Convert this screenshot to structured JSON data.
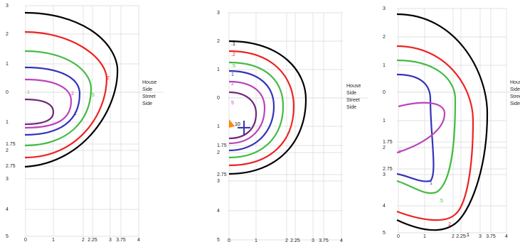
{
  "panels": [
    {
      "y_labels": [
        "3",
        "2",
        "1",
        "0",
        "1",
        "1.75",
        "2",
        "2.75",
        "3",
        "4",
        "5"
      ],
      "x_labels": [
        "0",
        "1",
        "2",
        "2.25",
        "3",
        "3.75",
        "4"
      ],
      "side_labels": [
        "House",
        "Side",
        "Street",
        "Side"
      ],
      "contour_labels": [
        "2",
        ".5",
        ".2",
        "1",
        "1"
      ]
    },
    {
      "y_labels": [
        "3",
        "2",
        "1",
        "0",
        "1",
        "1.75",
        "2",
        "2.75",
        "3",
        "4",
        "5"
      ],
      "x_labels": [
        "0",
        "1",
        "2",
        "2.25",
        "3",
        "3.75",
        "4"
      ],
      "side_labels": [
        "House",
        "Side",
        "Street",
        "Side"
      ],
      "contour_labels": [
        ".1",
        ".2",
        ".5",
        "1",
        "2",
        "5",
        "10"
      ]
    },
    {
      "y_labels": [
        "3",
        "2",
        "1",
        "0",
        "1",
        "1.75",
        "2",
        "2.75",
        "3",
        "4",
        "5"
      ],
      "x_labels": [
        "0",
        "1",
        "2",
        "2.25",
        "3",
        "3.75",
        "4"
      ],
      "side_labels": [
        "House",
        "Side",
        "Street",
        "Side"
      ],
      "contour_labels": [
        ".5",
        "1",
        ".2",
        "2",
        ".1"
      ]
    }
  ]
}
